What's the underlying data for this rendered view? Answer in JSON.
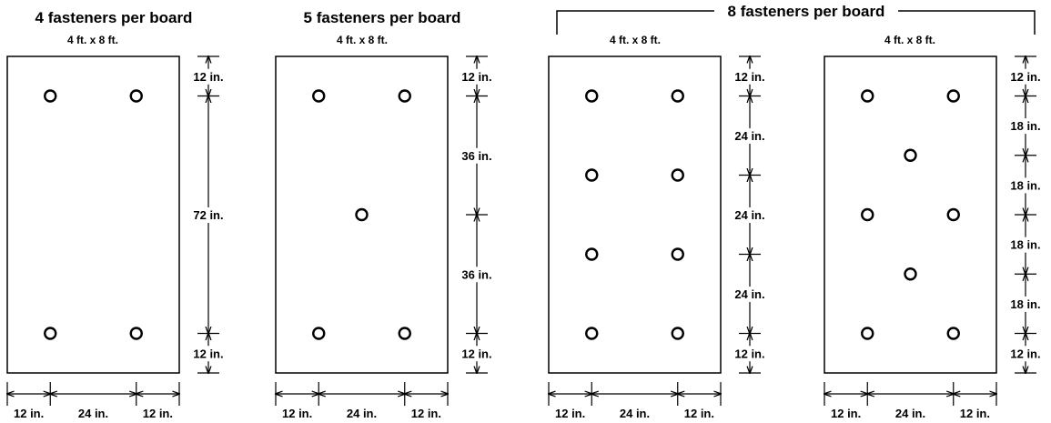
{
  "title_4": "4 fasteners per board",
  "title_5": "5 fasteners per board",
  "title_8": "8 fasteners per board",
  "board_size": "4 ft. x 8 ft.",
  "dim_labels": {
    "d12": "12 in.",
    "d24": "24 in.",
    "d36": "36 in.",
    "d18": "18 in.",
    "d72": "72 in."
  },
  "boards": [
    {
      "name": "board-4-fasteners",
      "fasteners": [
        [
          12,
          12
        ],
        [
          36,
          12
        ],
        [
          12,
          84
        ],
        [
          36,
          84
        ]
      ],
      "vertical_dims": [
        12,
        72,
        12
      ],
      "horizontal_dims": [
        12,
        24,
        12
      ]
    },
    {
      "name": "board-5-fasteners",
      "fasteners": [
        [
          12,
          12
        ],
        [
          36,
          12
        ],
        [
          24,
          48
        ],
        [
          12,
          84
        ],
        [
          36,
          84
        ]
      ],
      "vertical_dims": [
        12,
        36,
        36,
        12
      ],
      "horizontal_dims": [
        12,
        24,
        12
      ]
    },
    {
      "name": "board-8-fasteners-grid",
      "fasteners": [
        [
          12,
          12
        ],
        [
          36,
          12
        ],
        [
          12,
          36
        ],
        [
          36,
          36
        ],
        [
          12,
          60
        ],
        [
          36,
          60
        ],
        [
          12,
          84
        ],
        [
          36,
          84
        ]
      ],
      "vertical_dims": [
        12,
        24,
        24,
        24,
        12
      ],
      "horizontal_dims": [
        12,
        24,
        12
      ]
    },
    {
      "name": "board-8-fasteners-staggered",
      "fasteners": [
        [
          12,
          12
        ],
        [
          36,
          12
        ],
        [
          24,
          30
        ],
        [
          12,
          48
        ],
        [
          36,
          48
        ],
        [
          24,
          66
        ],
        [
          12,
          84
        ],
        [
          36,
          84
        ]
      ],
      "vertical_dims": [
        12,
        18,
        18,
        18,
        18,
        12
      ],
      "horizontal_dims": [
        12,
        24,
        12
      ]
    }
  ]
}
